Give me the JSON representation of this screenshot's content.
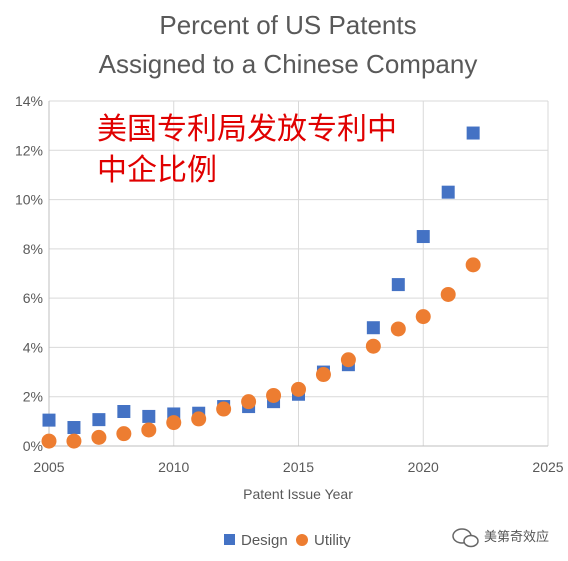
{
  "chart_data": {
    "type": "scatter",
    "title": [
      "Percent of US Patents",
      "Assigned to a Chinese Company"
    ],
    "annotation": [
      "美国专利局发放专利中",
      "中企比例"
    ],
    "xlabel": "Patent Issue Year",
    "ylabel": "",
    "xlim": [
      2005,
      2025
    ],
    "ylim": [
      0,
      14
    ],
    "xticks": [
      "2005",
      "2010",
      "2015",
      "2020",
      "2025"
    ],
    "yticks": [
      "0%",
      "2%",
      "4%",
      "6%",
      "8%",
      "10%",
      "12%",
      "14%"
    ],
    "grid": true,
    "legend_position": "bottom",
    "series": [
      {
        "name": "Design",
        "marker": "square",
        "color": "#4472c4",
        "x": [
          2005,
          2006,
          2007,
          2008,
          2009,
          2010,
          2011,
          2012,
          2013,
          2014,
          2015,
          2016,
          2017,
          2018,
          2019,
          2020,
          2021,
          2022
        ],
        "y": [
          1.05,
          0.75,
          1.07,
          1.4,
          1.2,
          1.3,
          1.33,
          1.6,
          1.6,
          1.8,
          2.1,
          3.0,
          3.3,
          4.8,
          6.55,
          8.5,
          10.3,
          12.7
        ]
      },
      {
        "name": "Utility",
        "marker": "circle",
        "color": "#ed7d31",
        "x": [
          2005,
          2006,
          2007,
          2008,
          2009,
          2010,
          2011,
          2012,
          2013,
          2014,
          2015,
          2016,
          2017,
          2018,
          2019,
          2020,
          2021,
          2022
        ],
        "y": [
          0.2,
          0.2,
          0.35,
          0.5,
          0.65,
          0.95,
          1.1,
          1.5,
          1.8,
          2.05,
          2.3,
          2.9,
          3.5,
          4.05,
          4.75,
          5.25,
          6.15,
          7.35
        ]
      }
    ]
  },
  "watermark": {
    "icon": "chat-bubble-icon",
    "text": "美第奇效应"
  }
}
